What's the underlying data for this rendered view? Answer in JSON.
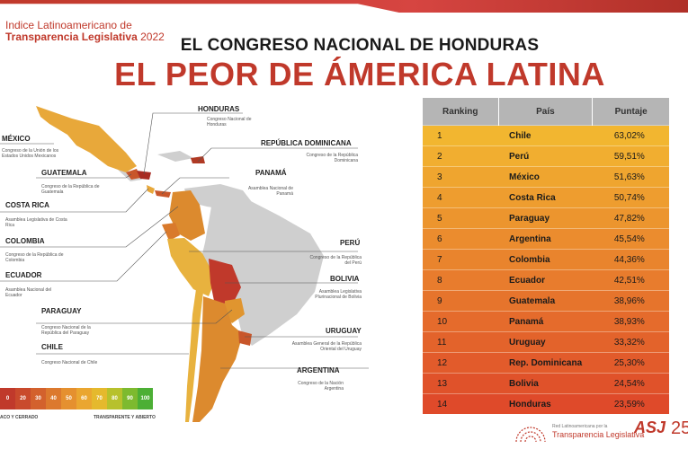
{
  "header": {
    "index_line1": "Indice Latinoamericano de",
    "index_line2": "Transparencia Legislativa",
    "index_year": "2022",
    "subtitle": "EL CONGRESO NACIONAL DE HONDURAS",
    "title": "EL PEOR DE ÁMERICA LATINA"
  },
  "map": {
    "labels": [
      {
        "key": "honduras",
        "name": "HONDURAS",
        "sub": "Congreso Nacional de Honduras"
      },
      {
        "key": "mexico",
        "name": "MÉXICO",
        "sub": "Congreso de la Unión de los Estados Unidos Mexicanos"
      },
      {
        "key": "rd",
        "name": "REPÚBLICA DOMINICANA",
        "sub": "Congreso de la República Dominicana"
      },
      {
        "key": "guatemala",
        "name": "GUATEMALA",
        "sub": "Congreso de la República de Guatemala"
      },
      {
        "key": "panama",
        "name": "PANAMÁ",
        "sub": "Asamblea Nacional de Panamá"
      },
      {
        "key": "costarica",
        "name": "COSTA RICA",
        "sub": "Asamblea Legislativa de Costa Rica"
      },
      {
        "key": "colombia",
        "name": "COLOMBIA",
        "sub": "Congreso de la República de Colombia"
      },
      {
        "key": "peru",
        "name": "PERÚ",
        "sub": "Congreso de la República del Perú"
      },
      {
        "key": "ecuador",
        "name": "ECUADOR",
        "sub": "Asamblea Nacional del Ecuador"
      },
      {
        "key": "bolivia",
        "name": "BOLIVIA",
        "sub": "Asamblea Legislativa Plurinacional de Bolivia"
      },
      {
        "key": "paraguay",
        "name": "PARAGUAY",
        "sub": "Congreso Nacional de la República del Paraguay"
      },
      {
        "key": "uruguay",
        "name": "URUGUAY",
        "sub": "Asamblea General de la República Oriental del Uruguay"
      },
      {
        "key": "chile",
        "name": "CHILE",
        "sub": "Congreso Nacional de Chile"
      },
      {
        "key": "argentina",
        "name": "ARGENTINA",
        "sub": "Congreso de la Nación Argentina"
      }
    ],
    "scale": [
      "0",
      "20",
      "30",
      "40",
      "50",
      "60",
      "70",
      "80",
      "90",
      "100"
    ],
    "scale_colors": [
      "#c0392b",
      "#c94a2c",
      "#d3612d",
      "#dc792e",
      "#e5902f",
      "#eaa630",
      "#e5b92d",
      "#b7c12c",
      "#7dba2f",
      "#4caf35"
    ],
    "scale_left": "ACO Y CERRADO",
    "scale_right": "TRANSPARENTE Y ABIERTO",
    "colors": {
      "high": "#e8a83a",
      "mid": "#dc8a2e",
      "low": "#c8562a",
      "lowest": "#a82b22",
      "other": "#cfcfcf"
    }
  },
  "chart_data": {
    "type": "table",
    "columns": [
      "Ranking",
      "País",
      "Puntaje"
    ],
    "rows": [
      {
        "rank": "1",
        "country": "Chile",
        "score": "63,02%",
        "value": 63.02
      },
      {
        "rank": "2",
        "country": "Perú",
        "score": "59,51%",
        "value": 59.51
      },
      {
        "rank": "3",
        "country": "México",
        "score": "51,63%",
        "value": 51.63
      },
      {
        "rank": "4",
        "country": "Costa Rica",
        "score": "50,74%",
        "value": 50.74
      },
      {
        "rank": "5",
        "country": "Paraguay",
        "score": "47,82%",
        "value": 47.82
      },
      {
        "rank": "6",
        "country": "Argentina",
        "score": "45,54%",
        "value": 45.54
      },
      {
        "rank": "7",
        "country": "Colombia",
        "score": "44,36%",
        "value": 44.36
      },
      {
        "rank": "8",
        "country": "Ecuador",
        "score": "42,51%",
        "value": 42.51
      },
      {
        "rank": "9",
        "country": "Guatemala",
        "score": "38,96%",
        "value": 38.96
      },
      {
        "rank": "10",
        "country": "Panamá",
        "score": "38,93%",
        "value": 38.93
      },
      {
        "rank": "11",
        "country": "Uruguay",
        "score": "33,32%",
        "value": 33.32
      },
      {
        "rank": "12",
        "country": "Rep. Dominicana",
        "score": "25,30%",
        "value": 25.3
      },
      {
        "rank": "13",
        "country": "Bolivia",
        "score": "24,54%",
        "value": 24.54
      },
      {
        "rank": "14",
        "country": "Honduras",
        "score": "23,59%",
        "value": 23.59
      }
    ],
    "row_color_top": "#f2b630",
    "row_color_bottom": "#df4a2a"
  },
  "footer": {
    "logo_line1": "Red Latinoamericana por la",
    "logo_line2": "Transparencia Legislativa",
    "asj": "ASJ",
    "asj_num": "25"
  }
}
